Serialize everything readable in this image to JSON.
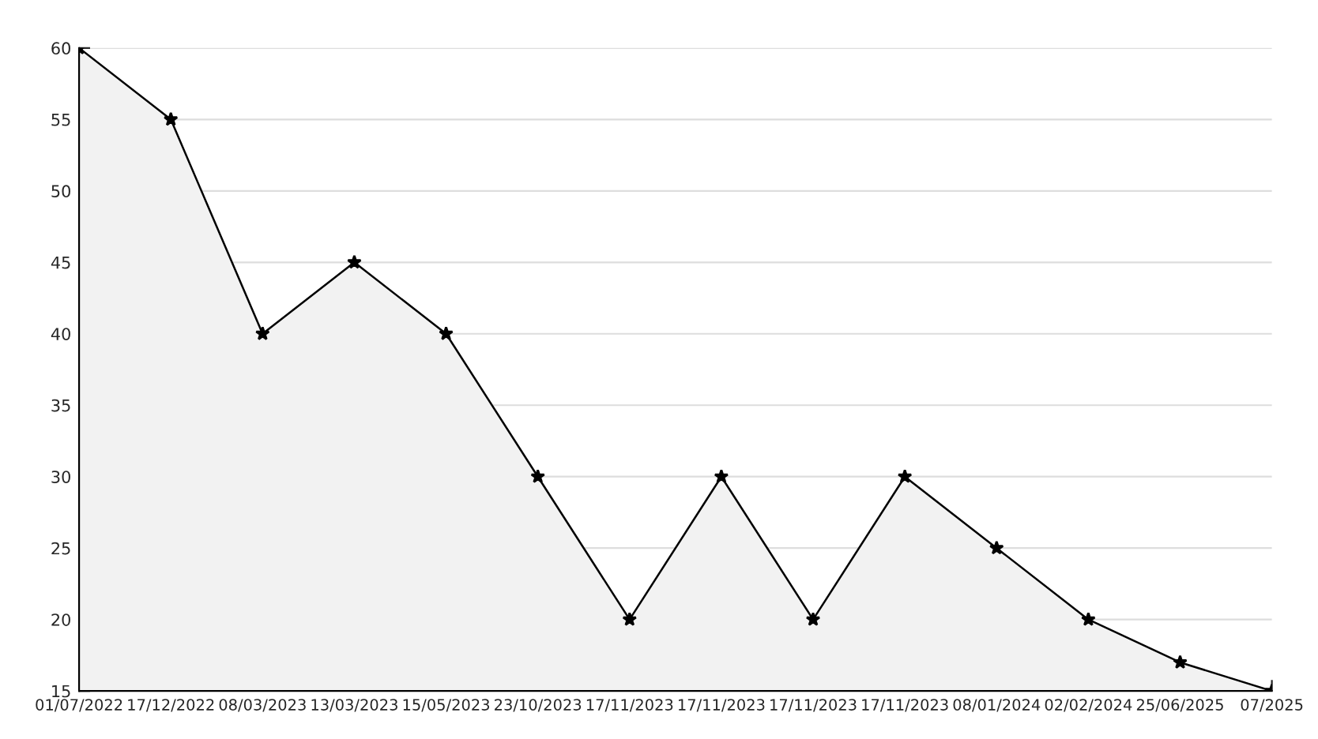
{
  "chart_data": {
    "type": "area",
    "categories": [
      "01/07/2022",
      "17/12/2022",
      "08/03/2023",
      "13/03/2023",
      "15/05/2023",
      "23/10/2023",
      "17/11/2023",
      "17/11/2023",
      "17/11/2023",
      "17/11/2023",
      "08/01/2024",
      "02/02/2024",
      "25/06/2025",
      "07/2025"
    ],
    "series": [
      {
        "color": "#000000",
        "values": [
          60,
          55,
          40,
          45,
          40,
          30,
          20,
          30,
          20,
          30,
          25,
          20,
          17,
          15
        ]
      }
    ],
    "ylim": [
      15,
      60
    ],
    "yticks": [
      15,
      20,
      25,
      30,
      35,
      40,
      45,
      50,
      55,
      60
    ],
    "grid": "y",
    "marker": "star",
    "line_style": "solid"
  }
}
